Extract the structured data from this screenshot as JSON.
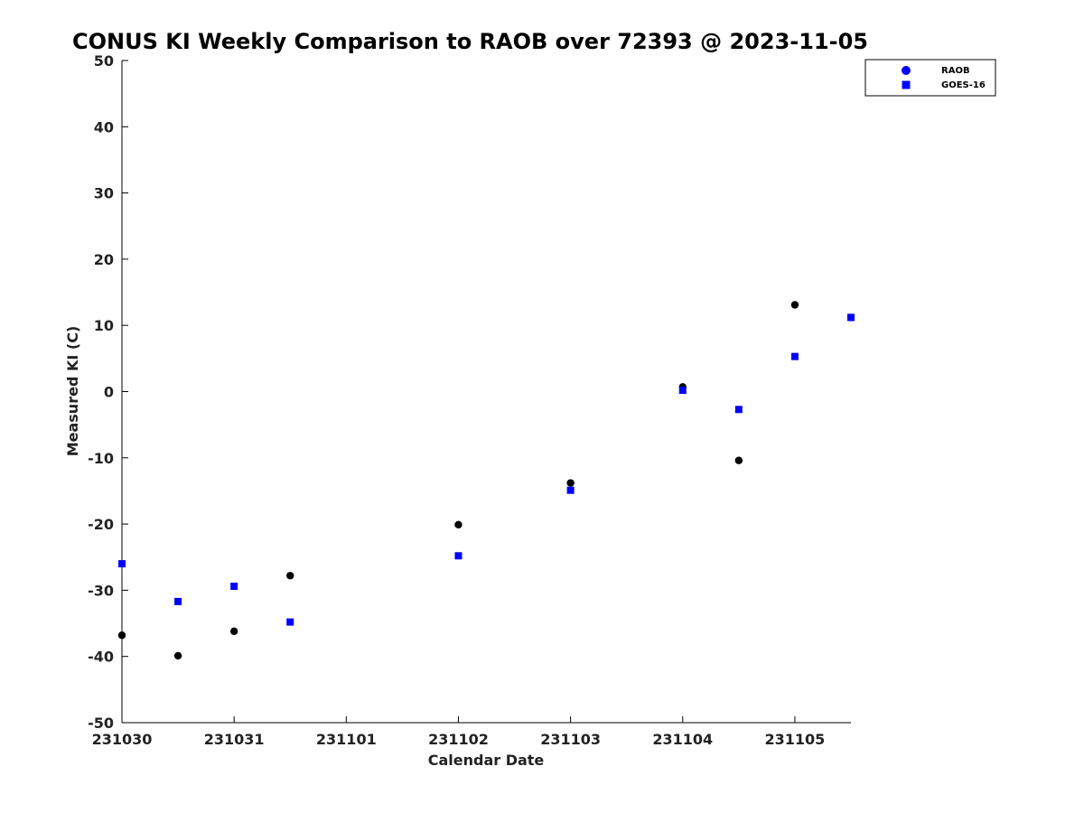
{
  "chart_data": {
    "type": "scatter",
    "title": "CONUS KI Weekly Comparison to RAOB over 72393 @ 2023-11-05",
    "xlabel": "Calendar Date",
    "ylabel": "Measured KI (C)",
    "xlim": [
      0,
      6.5
    ],
    "ylim": [
      -50,
      50
    ],
    "x_ticks": [
      {
        "value": 0,
        "label": "231030"
      },
      {
        "value": 1,
        "label": "231031"
      },
      {
        "value": 2,
        "label": "231101"
      },
      {
        "value": 3,
        "label": "231102"
      },
      {
        "value": 4,
        "label": "231103"
      },
      {
        "value": 5,
        "label": "231104"
      },
      {
        "value": 6,
        "label": "231105"
      }
    ],
    "y_ticks": [
      {
        "value": 50,
        "label": "50"
      },
      {
        "value": 40,
        "label": "40"
      },
      {
        "value": 30,
        "label": "30"
      },
      {
        "value": 20,
        "label": "20"
      },
      {
        "value": 10,
        "label": "10"
      },
      {
        "value": 0,
        "label": "0"
      },
      {
        "value": -10,
        "label": "-10"
      },
      {
        "value": -20,
        "label": "-20"
      },
      {
        "value": -30,
        "label": "-30"
      },
      {
        "value": -40,
        "label": "-40"
      },
      {
        "value": -50,
        "label": "-50"
      }
    ],
    "grid": false,
    "legend_position": "top-right",
    "series": [
      {
        "name": "RAOB",
        "marker": "circle",
        "legend_color": "#0000ff",
        "point_color": "#000000",
        "x": [
          0,
          0.5,
          1,
          1.5,
          3,
          4,
          5,
          5.5,
          6,
          6.5
        ],
        "y": [
          -36.8,
          -39.9,
          -36.2,
          -27.8,
          -20.1,
          -13.8,
          0.7,
          -10.4,
          13.1,
          11.2
        ]
      },
      {
        "name": "GOES-16",
        "marker": "square",
        "legend_color": "#0000ff",
        "point_color": "#0000ff",
        "x": [
          0,
          0.5,
          1,
          1.5,
          3,
          4,
          5,
          5.5,
          6,
          6.5
        ],
        "y": [
          -26.0,
          -31.7,
          -29.4,
          -34.8,
          -24.8,
          -14.9,
          0.2,
          -2.7,
          5.3,
          11.2
        ]
      }
    ]
  }
}
